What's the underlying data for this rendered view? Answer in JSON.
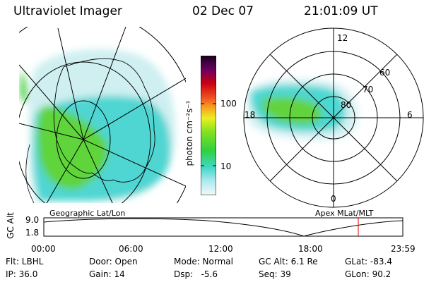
{
  "header": {
    "instrument": "Ultraviolet Imager",
    "date": "02 Dec 07",
    "time": "21:01:09 UT"
  },
  "geo_panel": {
    "caption": "Geographic Lat/Lon"
  },
  "apex_panel": {
    "caption": "Apex MLat/MLT",
    "mlt_labels": {
      "top": "12",
      "left": "18",
      "right": "6",
      "bottom": "0"
    },
    "lat_labels": [
      "60",
      "70",
      "80"
    ]
  },
  "colorbar": {
    "unit_label": "photon cm⁻²s⁻¹",
    "ticks": [
      "100",
      "10"
    ]
  },
  "altitude_plot": {
    "y_title": "GC Alt",
    "y_ticks": [
      "9.0",
      "1.8"
    ],
    "x_ticks": [
      "00:00",
      "06:00",
      "12:00",
      "18:00",
      "23:59"
    ],
    "current_time_fraction": 0.876
  },
  "info": {
    "row1": {
      "filter": "Flt: LBHL",
      "door": "Door: Open",
      "mode": "Mode: Normal",
      "gc_alt": "GC Alt: 6.1 Re",
      "glat": "GLat: -83.4"
    },
    "row2": {
      "ip": "IP: 36.0",
      "gain": "Gain: 14",
      "dsp": "Dsp:   -5.6",
      "seq": "Seq: 39",
      "glon": "GLon: 90.2"
    }
  },
  "colors": {
    "time_marker": "#e00000",
    "emission_green": "#4ccd2c",
    "emission_cyan": "#45d7d3",
    "emission_pale": "#c9eef0"
  }
}
